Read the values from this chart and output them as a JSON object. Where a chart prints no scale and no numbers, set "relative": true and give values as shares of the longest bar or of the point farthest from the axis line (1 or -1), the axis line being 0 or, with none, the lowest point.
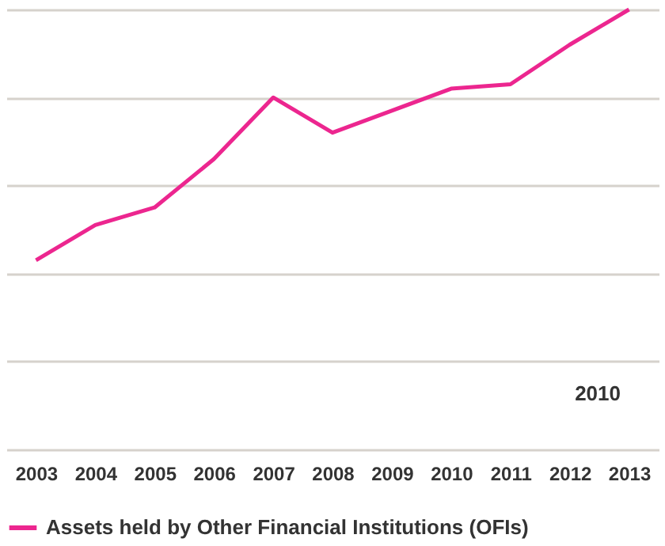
{
  "chart_data": {
    "type": "line",
    "relative": true,
    "categories": [
      "2003",
      "2004",
      "2005",
      "2006",
      "2007",
      "2008",
      "2009",
      "2010",
      "2011",
      "2012",
      "2013"
    ],
    "series": [
      {
        "name": "Assets held by Other Financial Institutions (OFIs)",
        "color": "#ec268f",
        "values": [
          0.43,
          0.51,
          0.55,
          0.66,
          0.8,
          0.72,
          0.77,
          0.82,
          0.83,
          0.92,
          1.0
        ]
      }
    ],
    "annotations": [
      "2010"
    ],
    "grid": "y",
    "legend": "bottom",
    "marker": "none",
    "line_style": "solid"
  }
}
